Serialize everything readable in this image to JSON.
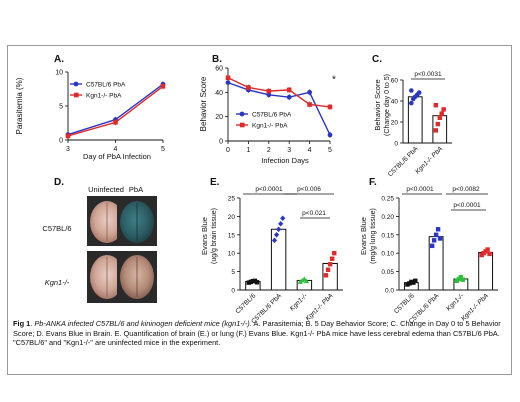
{
  "panels": {
    "A": {
      "letter": "A.",
      "ylabel": "Parasitemia (%)",
      "xlabel": "Day of PbA Infection"
    },
    "B": {
      "letter": "B.",
      "ylabel": "Behavior Score",
      "xlabel": "Infection Days"
    },
    "C": {
      "letter": "C.",
      "ylabel": "Behavior Score",
      "ylabel2": "(Change day 0 to 5)",
      "pvalue": "p<0.0031"
    },
    "D": {
      "letter": "D.",
      "col1": "Uninfected",
      "col2": "PbA",
      "row1": "C57BL/6",
      "row2": "Kgn1-/-"
    },
    "E": {
      "letter": "E.",
      "ylabel": "Evans Blue",
      "ylabel2": "(ug/g brain tissue)",
      "p1": "p<0.0001",
      "p2": "p<0.006",
      "p3": "p<0.021"
    },
    "F": {
      "letter": "F.",
      "ylabel": "Evans Blue",
      "ylabel2": "(mg/g lung tissue)",
      "p1": "p<0.0001",
      "p2": "p<0.0082",
      "p3": "p<0.0001"
    }
  },
  "caption": {
    "fig": "Fig 1",
    "title": "Pb-ANKA infected C57BL/6 and kininogen deficient mice (kgn1-/-).",
    "body": " A. Parasitemia; B. 5 Day Behavior Score; C. Change in Day 0 to 5 Behavior Score; D. Evans Blue in Brain. E. Quantification of brain (E.) or lung (F.) Evans Blue. Kgn1-/- PbA mice have less cerebral edema than C57BL/6 PbA. \"C57BL/6\" and \"Kgn1-/-\" are uninfected mice in the experiment."
  },
  "colors": {
    "c57": "#2b36c4",
    "kgn": "#e02a2a",
    "green": "#2fbf3a",
    "black": "#111111"
  },
  "chart_data": [
    {
      "panel": "A",
      "type": "line",
      "x": [
        3,
        4,
        5
      ],
      "ylim": [
        0,
        10
      ],
      "yticks": [
        0,
        5,
        10
      ],
      "series": [
        {
          "name": "C57BL/6 PbA",
          "values": [
            0.8,
            3.0,
            8.2
          ],
          "color": "#2b36c4"
        },
        {
          "name": "Kgn1-/- PbA",
          "values": [
            0.6,
            2.6,
            7.9
          ],
          "color": "#e02a2a"
        }
      ]
    },
    {
      "panel": "B",
      "type": "line",
      "x": [
        0,
        1,
        2,
        3,
        4,
        5
      ],
      "ylim": [
        0,
        60
      ],
      "yticks": [
        0,
        20,
        40,
        60
      ],
      "annotation": "*",
      "series": [
        {
          "name": "C57BL/6 PbA",
          "values": [
            48,
            42,
            38,
            36,
            40,
            5
          ],
          "color": "#2b36c4"
        },
        {
          "name": "Kgn1-/- PbA",
          "values": [
            52,
            44,
            41,
            42,
            30,
            28
          ],
          "color": "#e02a2a"
        }
      ]
    },
    {
      "panel": "C",
      "type": "bar",
      "categories": [
        "C57BL/6 PbA",
        "Kgn1-/- PbA"
      ],
      "ylim": [
        0,
        60
      ],
      "yticks": [
        0,
        20,
        40,
        60
      ],
      "values": [
        44,
        26
      ],
      "points": [
        [
          38,
          42,
          44,
          46,
          48,
          50
        ],
        [
          12,
          18,
          24,
          28,
          32,
          36
        ]
      ]
    },
    {
      "panel": "E",
      "type": "bar",
      "categories": [
        "C57BL/6",
        "C57BL/6 PbA",
        "Kgn1-/-",
        "Kgn1-/- PbA"
      ],
      "ylim": [
        0,
        25
      ],
      "yticks": [
        0,
        5,
        10,
        15,
        20,
        25
      ],
      "values": [
        2.3,
        16.5,
        2.6,
        7.2
      ],
      "points": [
        [
          2.0,
          2.2,
          2.4,
          2.5,
          2.1
        ],
        [
          13.5,
          15.0,
          16.5,
          18.0,
          19.5
        ],
        [
          2.2,
          2.6,
          3.0,
          2.4
        ],
        [
          4.0,
          5.5,
          7.0,
          8.5,
          10.0
        ]
      ]
    },
    {
      "panel": "F",
      "type": "bar",
      "categories": [
        "C57BL/6",
        "C57BL/6 PbA",
        "Kgn1-/-",
        "Kgn1-/- PbA"
      ],
      "ylim": [
        0,
        0.25
      ],
      "yticks": [
        0.0,
        0.05,
        0.1,
        0.15,
        0.2,
        0.25
      ],
      "values": [
        0.02,
        0.145,
        0.03,
        0.102
      ],
      "points": [
        [
          0.015,
          0.018,
          0.022,
          0.02,
          0.025
        ],
        [
          0.12,
          0.135,
          0.15,
          0.165,
          0.14
        ],
        [
          0.025,
          0.03,
          0.035,
          0.028
        ],
        [
          0.095,
          0.1,
          0.105,
          0.11,
          0.098
        ]
      ]
    }
  ]
}
